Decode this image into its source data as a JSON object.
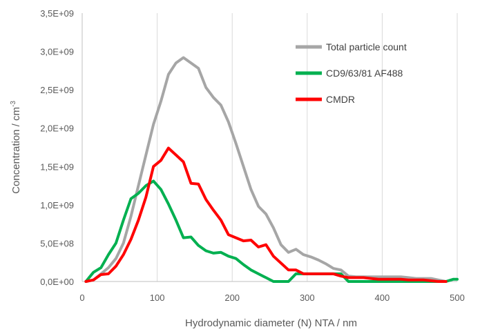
{
  "chart_data": {
    "type": "line",
    "title": "",
    "xlabel": "Hydrodynamic diameter (N) NTA / nm",
    "ylabel_main": "Concentration / cm",
    "ylabel_sup": "-3",
    "xlim": [
      0,
      500
    ],
    "ylim": [
      0,
      3500000000
    ],
    "x_ticks": [
      0,
      100,
      200,
      300,
      400,
      500
    ],
    "x_tick_labels": [
      "0",
      "100",
      "200",
      "300",
      "400",
      "500"
    ],
    "y_ticks": [
      0,
      500000000,
      1000000000,
      1500000000,
      2000000000,
      2500000000,
      3000000000,
      3500000000
    ],
    "y_tick_labels": [
      "0,0E+00",
      "5,0E+08",
      "1,0E+09",
      "1,5E+09",
      "2,0E+09",
      "2,5E+09",
      "3,0E+09",
      "3,5E+09"
    ],
    "grid": "vertical",
    "legend_position": "top-right",
    "series": [
      {
        "name": "Total particle count",
        "color": "#a6a6a6",
        "points": [
          [
            5,
            0
          ],
          [
            15,
            20000000
          ],
          [
            25,
            100000000
          ],
          [
            35,
            180000000
          ],
          [
            45,
            300000000
          ],
          [
            55,
            500000000
          ],
          [
            65,
            850000000
          ],
          [
            75,
            1250000000
          ],
          [
            85,
            1650000000
          ],
          [
            95,
            2050000000
          ],
          [
            105,
            2350000000
          ],
          [
            115,
            2700000000
          ],
          [
            125,
            2850000000
          ],
          [
            135,
            2920000000
          ],
          [
            145,
            2850000000
          ],
          [
            155,
            2780000000
          ],
          [
            165,
            2530000000
          ],
          [
            175,
            2400000000
          ],
          [
            185,
            2300000000
          ],
          [
            195,
            2080000000
          ],
          [
            205,
            1800000000
          ],
          [
            215,
            1500000000
          ],
          [
            225,
            1200000000
          ],
          [
            235,
            980000000
          ],
          [
            245,
            880000000
          ],
          [
            255,
            700000000
          ],
          [
            265,
            480000000
          ],
          [
            275,
            380000000
          ],
          [
            285,
            420000000
          ],
          [
            295,
            350000000
          ],
          [
            305,
            320000000
          ],
          [
            315,
            280000000
          ],
          [
            325,
            230000000
          ],
          [
            335,
            170000000
          ],
          [
            345,
            150000000
          ],
          [
            355,
            70000000
          ],
          [
            365,
            60000000
          ],
          [
            375,
            60000000
          ],
          [
            385,
            60000000
          ],
          [
            395,
            60000000
          ],
          [
            405,
            60000000
          ],
          [
            415,
            60000000
          ],
          [
            425,
            60000000
          ],
          [
            435,
            50000000
          ],
          [
            445,
            40000000
          ],
          [
            455,
            40000000
          ],
          [
            465,
            40000000
          ],
          [
            475,
            20000000
          ],
          [
            485,
            0
          ]
        ]
      },
      {
        "name": "CD9/63/81 AF488",
        "color": "#00b050",
        "points": [
          [
            5,
            0
          ],
          [
            15,
            120000000
          ],
          [
            25,
            180000000
          ],
          [
            35,
            350000000
          ],
          [
            45,
            500000000
          ],
          [
            55,
            800000000
          ],
          [
            65,
            1080000000
          ],
          [
            75,
            1150000000
          ],
          [
            85,
            1250000000
          ],
          [
            95,
            1310000000
          ],
          [
            105,
            1200000000
          ],
          [
            115,
            1010000000
          ],
          [
            125,
            800000000
          ],
          [
            135,
            570000000
          ],
          [
            145,
            580000000
          ],
          [
            155,
            470000000
          ],
          [
            165,
            400000000
          ],
          [
            175,
            370000000
          ],
          [
            185,
            380000000
          ],
          [
            195,
            330000000
          ],
          [
            205,
            300000000
          ],
          [
            215,
            220000000
          ],
          [
            225,
            150000000
          ],
          [
            235,
            100000000
          ],
          [
            245,
            50000000
          ],
          [
            255,
            0
          ],
          [
            265,
            0
          ],
          [
            275,
            0
          ],
          [
            285,
            100000000
          ],
          [
            295,
            100000000
          ],
          [
            305,
            100000000
          ],
          [
            315,
            100000000
          ],
          [
            325,
            100000000
          ],
          [
            335,
            100000000
          ],
          [
            345,
            100000000
          ],
          [
            355,
            0
          ],
          [
            365,
            0
          ],
          [
            375,
            0
          ],
          [
            385,
            0
          ],
          [
            395,
            0
          ],
          [
            405,
            0
          ],
          [
            415,
            0
          ],
          [
            425,
            0
          ],
          [
            435,
            0
          ],
          [
            445,
            0
          ],
          [
            455,
            0
          ],
          [
            465,
            0
          ],
          [
            475,
            0
          ],
          [
            485,
            0
          ],
          [
            495,
            30000000
          ],
          [
            500,
            30000000
          ]
        ]
      },
      {
        "name": "CMDR",
        "color": "#ff0000",
        "points": [
          [
            5,
            0
          ],
          [
            15,
            20000000
          ],
          [
            25,
            90000000
          ],
          [
            35,
            100000000
          ],
          [
            45,
            200000000
          ],
          [
            55,
            350000000
          ],
          [
            65,
            550000000
          ],
          [
            75,
            800000000
          ],
          [
            85,
            1100000000
          ],
          [
            95,
            1500000000
          ],
          [
            105,
            1580000000
          ],
          [
            115,
            1740000000
          ],
          [
            125,
            1650000000
          ],
          [
            135,
            1560000000
          ],
          [
            145,
            1280000000
          ],
          [
            155,
            1270000000
          ],
          [
            165,
            1070000000
          ],
          [
            175,
            930000000
          ],
          [
            185,
            800000000
          ],
          [
            195,
            610000000
          ],
          [
            205,
            570000000
          ],
          [
            215,
            530000000
          ],
          [
            225,
            540000000
          ],
          [
            235,
            450000000
          ],
          [
            245,
            480000000
          ],
          [
            255,
            330000000
          ],
          [
            265,
            240000000
          ],
          [
            275,
            150000000
          ],
          [
            285,
            150000000
          ],
          [
            295,
            100000000
          ],
          [
            305,
            100000000
          ],
          [
            315,
            100000000
          ],
          [
            325,
            100000000
          ],
          [
            335,
            100000000
          ],
          [
            345,
            70000000
          ],
          [
            355,
            50000000
          ],
          [
            365,
            50000000
          ],
          [
            375,
            50000000
          ],
          [
            385,
            40000000
          ],
          [
            395,
            30000000
          ],
          [
            405,
            30000000
          ],
          [
            415,
            30000000
          ],
          [
            425,
            30000000
          ],
          [
            435,
            20000000
          ],
          [
            445,
            20000000
          ],
          [
            455,
            20000000
          ],
          [
            465,
            10000000
          ],
          [
            475,
            0
          ],
          [
            485,
            0
          ]
        ]
      }
    ]
  }
}
